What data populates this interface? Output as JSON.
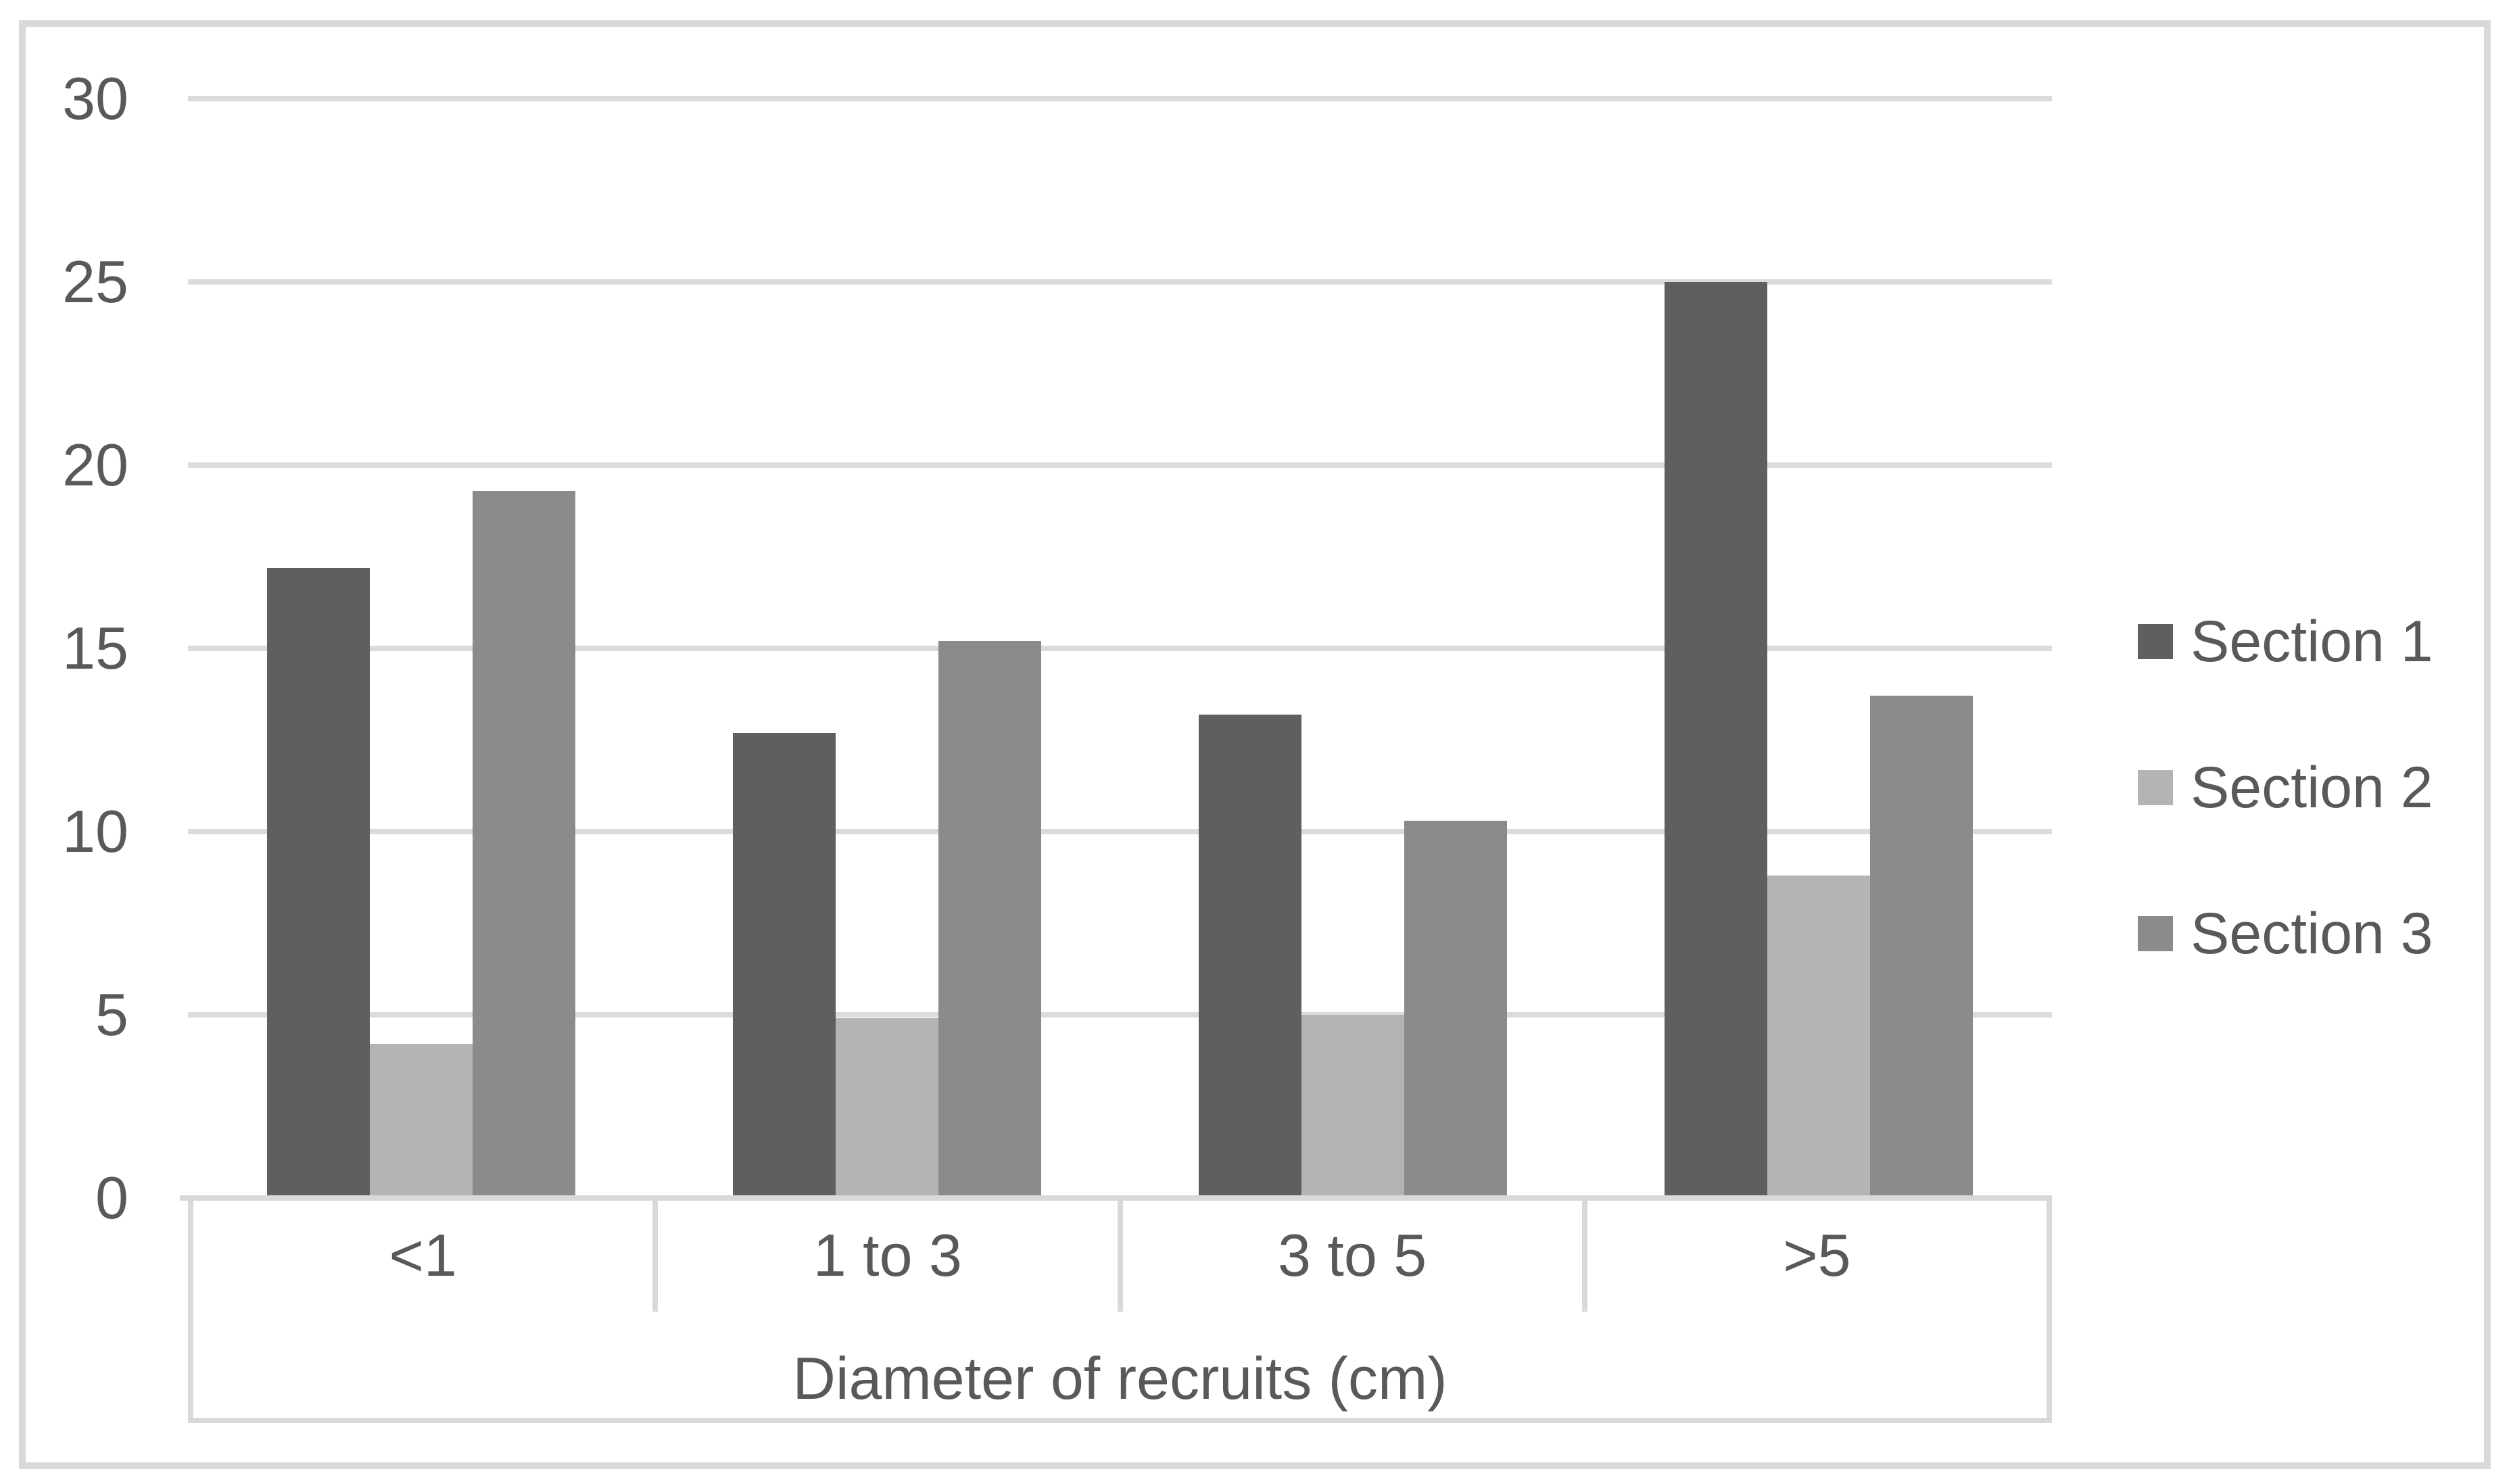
{
  "chart_data": {
    "type": "bar",
    "title": "",
    "categories": [
      "<1",
      "1 to 3",
      "3 to 5",
      ">5"
    ],
    "series": [
      {
        "name": "Section 1",
        "color": "#5f5f5f",
        "values": [
          17.2,
          12.7,
          13.2,
          25.0
        ]
      },
      {
        "name": "Section 2",
        "color": "#b4b4b4",
        "values": [
          4.2,
          4.9,
          5.0,
          8.8
        ]
      },
      {
        "name": "Section 3",
        "color": "#8b8b8b",
        "values": [
          19.3,
          15.2,
          10.3,
          13.7
        ]
      }
    ],
    "xlabel": "Diameter of recruits (cm)",
    "ylabel": "",
    "ylim": [
      0,
      30
    ],
    "yticks": [
      0,
      5,
      10,
      15,
      20,
      25,
      30
    ],
    "grid": true,
    "legend_position": "right"
  },
  "styles": {
    "gridline_color": "#dbdbdb",
    "axis_line_color": "#d9d9d9",
    "chart_border_color": "#d9d9d9",
    "text_color": "#595959",
    "background_color": "#ffffff"
  }
}
